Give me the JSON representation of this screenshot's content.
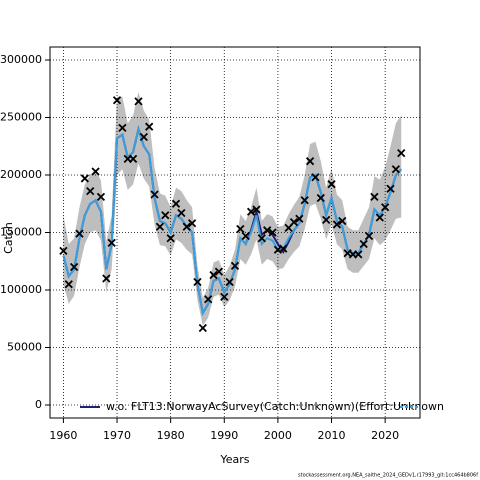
{
  "chart_data": {
    "type": "line",
    "xlabel": "Years",
    "ylabel": "Catch",
    "footer": "stockassessment.org,NEA_saithe_2024_GEDv1,r17993_git:1cc464b806f",
    "x": [
      1960,
      1961,
      1962,
      1963,
      1964,
      1965,
      1966,
      1967,
      1968,
      1969,
      1970,
      1971,
      1972,
      1973,
      1974,
      1975,
      1976,
      1977,
      1978,
      1979,
      1980,
      1981,
      1982,
      1983,
      1984,
      1985,
      1986,
      1987,
      1988,
      1989,
      1990,
      1991,
      1992,
      1993,
      1994,
      1995,
      1996,
      1997,
      1998,
      1999,
      2000,
      2001,
      2002,
      2003,
      2004,
      2005,
      2006,
      2007,
      2008,
      2009,
      2010,
      2011,
      2012,
      2013,
      2014,
      2015,
      2016,
      2017,
      2018,
      2019,
      2020,
      2021,
      2022,
      2023
    ],
    "values": [
      130000,
      112000,
      118000,
      145000,
      165000,
      175000,
      178000,
      168000,
      118000,
      140000,
      232000,
      235000,
      215000,
      220000,
      240000,
      225000,
      218000,
      180000,
      160000,
      158000,
      150000,
      165000,
      162000,
      155000,
      150000,
      105000,
      80000,
      88000,
      108000,
      110000,
      98000,
      105000,
      118000,
      145000,
      140000,
      150000,
      165000,
      140000,
      145000,
      143000,
      135000,
      136000,
      145000,
      152000,
      158000,
      175000,
      198000,
      200000,
      185000,
      165000,
      180000,
      160000,
      155000,
      135000,
      132000,
      132000,
      140000,
      148000,
      170000,
      165000,
      172000,
      185000,
      200000,
      205000
    ],
    "lower": [
      105000,
      88000,
      95000,
      120000,
      140000,
      150000,
      152000,
      143000,
      98000,
      118000,
      200000,
      205000,
      187000,
      192000,
      210000,
      197000,
      190000,
      157000,
      139000,
      138000,
      130000,
      144000,
      141000,
      135000,
      131000,
      91000,
      69000,
      76000,
      94000,
      96000,
      85000,
      91000,
      103000,
      127000,
      122000,
      131000,
      144000,
      122000,
      127000,
      125000,
      118000,
      119000,
      127000,
      133000,
      138000,
      153000,
      173000,
      175000,
      162000,
      144000,
      157000,
      140000,
      135000,
      118000,
      115000,
      115000,
      121000,
      127000,
      145000,
      139000,
      143000,
      152000,
      162000,
      163000
    ],
    "upper": [
      165000,
      140000,
      145000,
      172000,
      192000,
      200000,
      205000,
      195000,
      142000,
      165000,
      268000,
      268000,
      245000,
      252000,
      272000,
      256000,
      248000,
      206000,
      184000,
      182000,
      172000,
      189000,
      186000,
      178000,
      172000,
      121000,
      93000,
      102000,
      124000,
      126000,
      113000,
      121000,
      135000,
      166000,
      160000,
      172000,
      189000,
      160000,
      166000,
      164000,
      155000,
      156000,
      166000,
      174000,
      181000,
      200000,
      227000,
      229000,
      212000,
      189000,
      206000,
      183000,
      178000,
      155000,
      152000,
      152000,
      162000,
      172000,
      199000,
      196000,
      207000,
      225000,
      245000,
      252000
    ],
    "observed": [
      134000,
      105000,
      120000,
      149000,
      197000,
      186000,
      203000,
      181000,
      110000,
      141000,
      265000,
      241000,
      214000,
      214000,
      264000,
      233000,
      242000,
      183000,
      155000,
      165000,
      145000,
      175000,
      167000,
      155000,
      158000,
      107000,
      67000,
      92000,
      113000,
      116000,
      94000,
      107000,
      121000,
      153000,
      147000,
      168000,
      170000,
      145000,
      152000,
      150000,
      135000,
      136000,
      154000,
      159000,
      162000,
      178000,
      212000,
      198000,
      180000,
      161000,
      192000,
      157000,
      160000,
      132000,
      131000,
      131000,
      140000,
      147000,
      181000,
      163000,
      172000,
      188000,
      205000,
      219000
    ],
    "color": "#3a9fdf",
    "band_color": "#bebebe",
    "point_color": "#000000",
    "series": [
      {
        "name": "w.o. FLT13:NorwayAcSurvey(Catch:Unknown)(Effort:Unknown",
        "color": "#1f1f7a",
        "values": [
          130000,
          112000,
          118000,
          145000,
          165000,
          175000,
          178000,
          168000,
          118000,
          140000,
          232000,
          235000,
          215000,
          220000,
          240000,
          225000,
          218000,
          180000,
          160000,
          158000,
          150000,
          165000,
          162000,
          155000,
          150000,
          105000,
          80000,
          88000,
          108000,
          110000,
          98000,
          105000,
          118000,
          145000,
          140000,
          152000,
          168000,
          148000,
          152000,
          148000,
          140000,
          133000,
          142000,
          152000,
          158000,
          175000,
          198000,
          200000,
          185000,
          165000,
          180000,
          160000,
          155000,
          135000,
          132000,
          132000,
          140000,
          148000,
          170000,
          165000,
          172000,
          185000,
          200000,
          205000
        ]
      }
    ],
    "xlim": [
      1957.5,
      2026.5
    ],
    "ylim": [
      -11300,
      311300
    ],
    "xticks": [
      1960,
      1970,
      1980,
      1990,
      2000,
      2010,
      2020
    ],
    "yticks": [
      0,
      50000,
      100000,
      150000,
      200000,
      250000,
      300000
    ],
    "grid": true
  }
}
